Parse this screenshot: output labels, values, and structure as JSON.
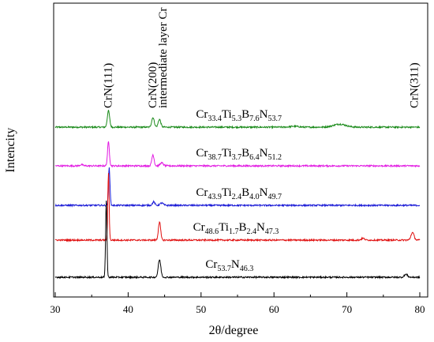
{
  "chart_data": {
    "type": "line",
    "xlabel": "2θ/degree",
    "ylabel": "Intencity",
    "xlim": [
      30,
      80
    ],
    "xticks": [
      30,
      40,
      50,
      60,
      70,
      80
    ],
    "grid": false,
    "peak_annotations": [
      {
        "text": "CrN(111)",
        "x": 37.2
      },
      {
        "text": "CrN(200)",
        "x": 43.3
      },
      {
        "text": "intermediate layer Cr",
        "x": 44.7
      },
      {
        "text": "CrN(311)",
        "x": 79.2
      }
    ],
    "series": [
      {
        "label_parts": [
          [
            "Cr",
            ""
          ],
          [
            "33.4",
            "sub"
          ],
          [
            "Ti",
            ""
          ],
          [
            "5.3",
            "sub"
          ],
          [
            "B",
            ""
          ],
          [
            "7.6",
            "sub"
          ],
          [
            "N",
            ""
          ],
          [
            "53.7",
            "sub"
          ]
        ],
        "color": "#1a8a1a",
        "offset": 4,
        "label_x": 49.3,
        "peaks": [
          {
            "x": 37.3,
            "h": 0.55,
            "w": 0.22
          },
          {
            "x": 43.4,
            "h": 0.32,
            "w": 0.25
          },
          {
            "x": 44.3,
            "h": 0.26,
            "w": 0.25
          },
          {
            "x": 69.0,
            "h": 0.1,
            "w": 1.2
          },
          {
            "x": 62.8,
            "h": 0.03,
            "w": 0.8
          }
        ]
      },
      {
        "label_parts": [
          [
            "Cr",
            ""
          ],
          [
            "38.7",
            "sub"
          ],
          [
            "Ti",
            ""
          ],
          [
            "3.7",
            "sub"
          ],
          [
            "B",
            ""
          ],
          [
            "6.4",
            "sub"
          ],
          [
            "N",
            ""
          ],
          [
            "51.2",
            "sub"
          ]
        ],
        "color": "#e21be2",
        "offset": 3,
        "label_x": 49.3,
        "peaks": [
          {
            "x": 37.3,
            "h": 0.8,
            "w": 0.18
          },
          {
            "x": 43.4,
            "h": 0.37,
            "w": 0.22
          },
          {
            "x": 44.6,
            "h": 0.1,
            "w": 0.3
          },
          {
            "x": 33.6,
            "h": 0.04,
            "w": 0.3
          }
        ]
      },
      {
        "label_parts": [
          [
            "Cr",
            ""
          ],
          [
            "43.9",
            "sub"
          ],
          [
            "Ti",
            ""
          ],
          [
            "2.4",
            "sub"
          ],
          [
            "B",
            ""
          ],
          [
            "4.0",
            "sub"
          ],
          [
            "N",
            ""
          ],
          [
            "49.7",
            "sub"
          ]
        ],
        "color": "#1a1ad6",
        "offset": 2,
        "label_x": 49.3,
        "peaks": [
          {
            "x": 37.4,
            "h": 1.25,
            "w": 0.15
          },
          {
            "x": 43.5,
            "h": 0.12,
            "w": 0.22
          },
          {
            "x": 44.6,
            "h": 0.08,
            "w": 0.3
          }
        ]
      },
      {
        "label_parts": [
          [
            "Cr",
            ""
          ],
          [
            "48.6",
            "sub"
          ],
          [
            "Ti",
            ""
          ],
          [
            "1.7",
            "sub"
          ],
          [
            "B",
            ""
          ],
          [
            "2.4",
            "sub"
          ],
          [
            "N",
            ""
          ],
          [
            "47.3",
            "sub"
          ]
        ],
        "color": "#e01010",
        "offset": 1,
        "label_x": 48.9,
        "peaks": [
          {
            "x": 37.3,
            "h": 2.25,
            "w": 0.13
          },
          {
            "x": 44.3,
            "h": 0.6,
            "w": 0.22
          },
          {
            "x": 79.0,
            "h": 0.25,
            "w": 0.3
          },
          {
            "x": 72.2,
            "h": 0.06,
            "w": 0.3
          }
        ]
      },
      {
        "label_parts": [
          [
            "Cr",
            ""
          ],
          [
            "53.7",
            "sub"
          ],
          [
            "N",
            ""
          ],
          [
            "46.3",
            "sub"
          ]
        ],
        "color": "#000000",
        "offset": 0,
        "label_x": 50.6,
        "peaks": [
          {
            "x": 37.0,
            "h": 2.55,
            "w": 0.13
          },
          {
            "x": 44.3,
            "h": 0.58,
            "w": 0.25
          },
          {
            "x": 78.1,
            "h": 0.1,
            "w": 0.3
          }
        ]
      }
    ]
  }
}
